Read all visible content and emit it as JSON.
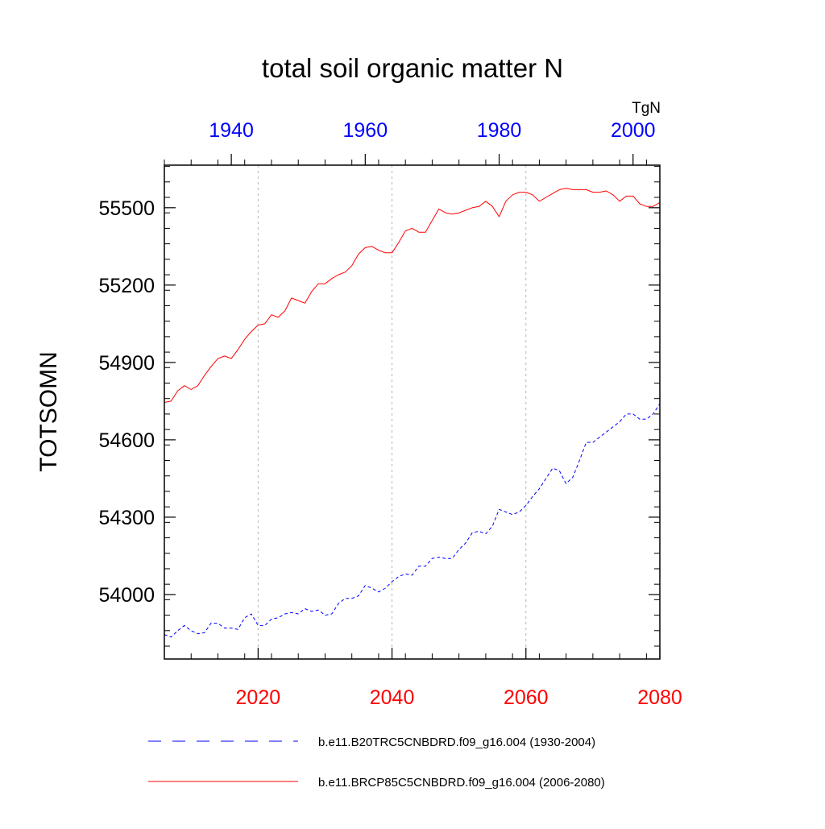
{
  "chart_data": {
    "type": "line",
    "title": "total soil organic matter N",
    "ylabel": "TOTSOMN",
    "units": "TgN",
    "ylim": [
      53750,
      55665
    ],
    "y_ticks": [
      54000,
      54300,
      54600,
      54900,
      55200,
      55500
    ],
    "colors": {
      "top_axis": "#0000ff",
      "bottom_axis": "#ff0000",
      "series_hist": "#0000ff",
      "series_rcp": "#ff0000"
    },
    "x_bottom": {
      "range": [
        2006,
        2080
      ],
      "ticks": [
        2020,
        2040,
        2060,
        2080
      ]
    },
    "x_top": {
      "range": [
        1930,
        2004
      ],
      "ticks": [
        1940,
        1960,
        1980,
        2000
      ]
    },
    "grid": {
      "vertical_dashed_at_bottom_years": [
        2020,
        2040,
        2060
      ]
    },
    "legend_position": "bottom",
    "series": [
      {
        "name": "b.e11.B20TRC5CNBDRD.f09_g16.004 (1930-2004)",
        "axis": "top",
        "style": "dashed",
        "color": "#0000ff",
        "x": [
          1930,
          1931,
          1932,
          1933,
          1934,
          1935,
          1936,
          1937,
          1938,
          1939,
          1940,
          1941,
          1942,
          1943,
          1944,
          1945,
          1946,
          1947,
          1948,
          1949,
          1950,
          1951,
          1952,
          1953,
          1954,
          1955,
          1956,
          1957,
          1958,
          1959,
          1960,
          1961,
          1962,
          1963,
          1964,
          1965,
          1966,
          1967,
          1968,
          1969,
          1970,
          1971,
          1972,
          1973,
          1974,
          1975,
          1976,
          1977,
          1978,
          1979,
          1980,
          1981,
          1982,
          1983,
          1984,
          1985,
          1986,
          1987,
          1988,
          1989,
          1990,
          1991,
          1992,
          1993,
          1994,
          1995,
          1996,
          1997,
          1998,
          1999,
          2000,
          2001,
          2002,
          2003,
          2004
        ],
        "y": [
          53845,
          53835,
          53860,
          53880,
          53860,
          53848,
          53852,
          53890,
          53888,
          53870,
          53870,
          53865,
          53910,
          53925,
          53880,
          53880,
          53905,
          53910,
          53925,
          53930,
          53925,
          53945,
          53935,
          53940,
          53920,
          53925,
          53965,
          53985,
          53985,
          53995,
          54035,
          54025,
          54010,
          54025,
          54050,
          54070,
          54080,
          54075,
          54110,
          54110,
          54140,
          54145,
          54140,
          54140,
          54175,
          54200,
          54240,
          54245,
          54235,
          54265,
          54330,
          54320,
          54310,
          54320,
          54345,
          54380,
          54410,
          54450,
          54490,
          54480,
          54430,
          54455,
          54520,
          54590,
          54590,
          54610,
          54630,
          54650,
          54670,
          54700,
          54700,
          54680,
          54680,
          54700,
          54740
        ]
      },
      {
        "name": "b.e11.BRCP85C5CNBDRD.f09_g16.004 (2006-2080)",
        "axis": "bottom",
        "style": "solid",
        "color": "#ff0000",
        "x": [
          2006,
          2007,
          2008,
          2009,
          2010,
          2011,
          2012,
          2013,
          2014,
          2015,
          2016,
          2017,
          2018,
          2019,
          2020,
          2021,
          2022,
          2023,
          2024,
          2025,
          2026,
          2027,
          2028,
          2029,
          2030,
          2031,
          2032,
          2033,
          2034,
          2035,
          2036,
          2037,
          2038,
          2039,
          2040,
          2041,
          2042,
          2043,
          2044,
          2045,
          2046,
          2047,
          2048,
          2049,
          2050,
          2051,
          2052,
          2053,
          2054,
          2055,
          2056,
          2057,
          2058,
          2059,
          2060,
          2061,
          2062,
          2063,
          2064,
          2065,
          2066,
          2067,
          2068,
          2069,
          2070,
          2071,
          2072,
          2073,
          2074,
          2075,
          2076,
          2077,
          2078,
          2079,
          2080
        ],
        "y": [
          54745,
          54750,
          54790,
          54810,
          54795,
          54810,
          54850,
          54885,
          54915,
          54925,
          54915,
          54950,
          54990,
          55020,
          55045,
          55050,
          55085,
          55075,
          55100,
          55150,
          55140,
          55130,
          55175,
          55205,
          55205,
          55225,
          55240,
          55250,
          55275,
          55320,
          55345,
          55350,
          55335,
          55325,
          55325,
          55365,
          55410,
          55420,
          55405,
          55405,
          55450,
          55495,
          55480,
          55475,
          55480,
          55490,
          55500,
          55505,
          55525,
          55505,
          55465,
          55525,
          55550,
          55560,
          55560,
          55550,
          55525,
          55540,
          55555,
          55570,
          55575,
          55570,
          55570,
          55570,
          55560,
          55560,
          55565,
          55550,
          55525,
          55545,
          55545,
          55515,
          55505,
          55505,
          55520
        ]
      }
    ]
  }
}
